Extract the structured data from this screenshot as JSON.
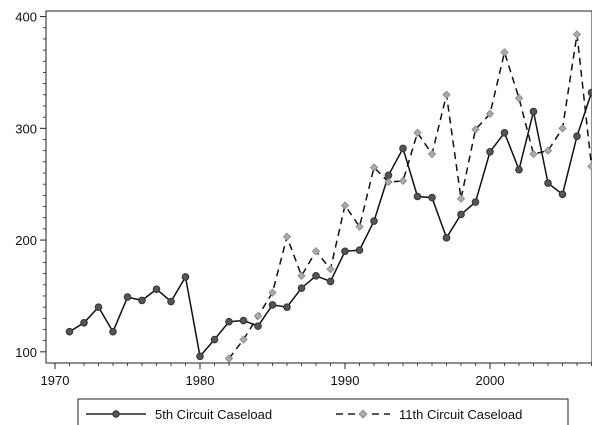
{
  "chart_data": {
    "type": "line",
    "title": "",
    "xlabel": "",
    "ylabel": "",
    "xlim": [
      1970,
      2007
    ],
    "ylim": [
      90,
      405
    ],
    "x_ticks": [
      1970,
      1980,
      1990,
      2000
    ],
    "y_ticks": [
      100,
      200,
      300,
      400
    ],
    "grid": false,
    "legend_position": "bottom",
    "series": [
      {
        "name": "5th Circuit Caseload",
        "line_style": "solid",
        "marker": "circle",
        "color": "#555555",
        "x": [
          1971,
          1972,
          1973,
          1974,
          1975,
          1976,
          1977,
          1978,
          1979,
          1980,
          1981,
          1982,
          1983,
          1984,
          1985,
          1986,
          1987,
          1988,
          1989,
          1990,
          1991,
          1992,
          1993,
          1994,
          1995,
          1996,
          1997,
          1998,
          1999,
          2000,
          2001,
          2002,
          2003,
          2004,
          2005,
          2006,
          2007
        ],
        "values": [
          118,
          126,
          140,
          118,
          149,
          146,
          156,
          145,
          167,
          96,
          111,
          127,
          128,
          123,
          142,
          140,
          157,
          168,
          163,
          190,
          191,
          217,
          258,
          282,
          239,
          238,
          202,
          223,
          234,
          279,
          296,
          263,
          315,
          251,
          241,
          293,
          332
        ]
      },
      {
        "name": "11th Circuit Caseload",
        "line_style": "dashed",
        "marker": "diamond",
        "color": "#999999",
        "x": [
          1982,
          1983,
          1984,
          1985,
          1986,
          1987,
          1988,
          1989,
          1990,
          1991,
          1992,
          1993,
          1994,
          1995,
          1996,
          1997,
          1998,
          1999,
          2000,
          2001,
          2002,
          2003,
          2004,
          2005,
          2006,
          2007
        ],
        "values": [
          94,
          111,
          132,
          153,
          203,
          168,
          190,
          174,
          231,
          212,
          265,
          252,
          253,
          296,
          277,
          330,
          237,
          299,
          313,
          368,
          327,
          277,
          280,
          300,
          384,
          266
        ]
      }
    ]
  }
}
